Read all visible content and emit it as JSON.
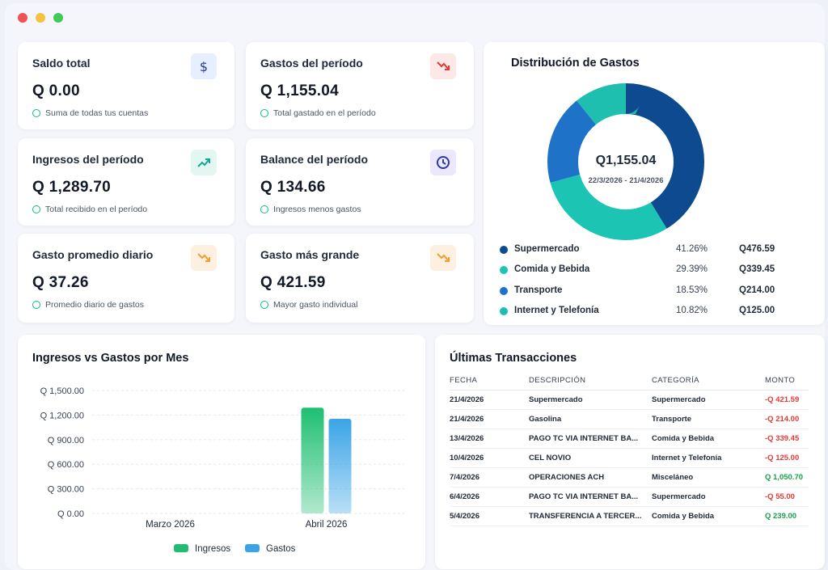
{
  "window": {
    "dots": [
      "#f0524f",
      "#f6c23e",
      "#3ecb5a"
    ]
  },
  "stats": [
    {
      "title": "Saldo total",
      "value": "Q 0.00",
      "subtitle": "Suma de todas tus cuentas",
      "icon": "dollar-icon"
    },
    {
      "title": "Gastos del período",
      "value": "Q 1,155.04",
      "subtitle": "Total gastado en el período",
      "icon": "trending-down-icon"
    },
    {
      "title": "Ingresos del período",
      "value": "Q 1,289.70",
      "subtitle": "Total recibido en el período",
      "icon": "trending-up-icon"
    },
    {
      "title": "Balance del período",
      "value": "Q 134.66",
      "subtitle": "Ingresos menos gastos",
      "icon": "clock-icon"
    },
    {
      "title": "Gasto promedio diario",
      "value": "Q 37.26",
      "subtitle": "Promedio diario de gastos",
      "icon": "trending-down-icon"
    },
    {
      "title": "Gasto más grande",
      "value": "Q 421.59",
      "subtitle": "Mayor gasto individual",
      "icon": "trending-down-icon"
    }
  ],
  "distribution": {
    "title": "Distribución de Gastos",
    "center_amount": "Q1,155.04",
    "center_range": "22/3/2026 - 21/4/2026",
    "items": [
      {
        "name": "Supermercado",
        "percent": "41.26%",
        "amount": "Q476.59",
        "color": "#0d4a8f"
      },
      {
        "name": "Comida y Bebida",
        "percent": "29.39%",
        "amount": "Q339.45",
        "color": "#1cc4b4"
      },
      {
        "name": "Transporte",
        "percent": "18.53%",
        "amount": "Q214.00",
        "color": "#1e73c8"
      },
      {
        "name": "Internet y Telefonía",
        "percent": "10.82%",
        "amount": "Q125.00",
        "color": "#1fbfb0"
      }
    ]
  },
  "chart_data": {
    "type": "bar",
    "title": "Ingresos vs Gastos por Mes",
    "categories": [
      "Marzo 2026",
      "Abril 2026"
    ],
    "series": [
      {
        "name": "Ingresos",
        "values": [
          0,
          1289.7
        ],
        "color": "#1fbf72"
      },
      {
        "name": "Gastos",
        "values": [
          0,
          1155.04
        ],
        "color": "#3aa4e6"
      }
    ],
    "yticks": [
      "Q 0.00",
      "Q 300.00",
      "Q 600.00",
      "Q 900.00",
      "Q 1,200.00",
      "Q 1,500.00"
    ],
    "ylim": [
      0,
      1500
    ],
    "grid": true,
    "legend": "bottom"
  },
  "transactions": {
    "title": "Últimas Transacciones",
    "headers": [
      "FECHA",
      "DESCRIPCIÓN",
      "CATEGORÍA",
      "MONTO"
    ],
    "rows": [
      {
        "date": "21/4/2026",
        "desc": "Supermercado",
        "cat": "Supermercado",
        "amount": "-Q 421.59",
        "type": "neg"
      },
      {
        "date": "21/4/2026",
        "desc": "Gasolina",
        "cat": "Transporte",
        "amount": "-Q 214.00",
        "type": "neg"
      },
      {
        "date": "13/4/2026",
        "desc": "PAGO TC VIA INTERNET BA...",
        "cat": "Comida y Bebida",
        "amount": "-Q 339.45",
        "type": "neg"
      },
      {
        "date": "10/4/2026",
        "desc": "CEL NOVIO",
        "cat": "Internet y Telefonía",
        "amount": "-Q 125.00",
        "type": "neg"
      },
      {
        "date": "7/4/2026",
        "desc": "OPERACIONES ACH",
        "cat": "Misceláneo",
        "amount": "Q 1,050.70",
        "type": "pos"
      },
      {
        "date": "6/4/2026",
        "desc": "PAGO TC VIA INTERNET BA...",
        "cat": "Supermercado",
        "amount": "-Q 55.00",
        "type": "neg"
      },
      {
        "date": "5/4/2026",
        "desc": "TRANSFERENCIA A TERCER...",
        "cat": "Comida y Bebida",
        "amount": "Q 239.00",
        "type": "pos"
      }
    ]
  }
}
